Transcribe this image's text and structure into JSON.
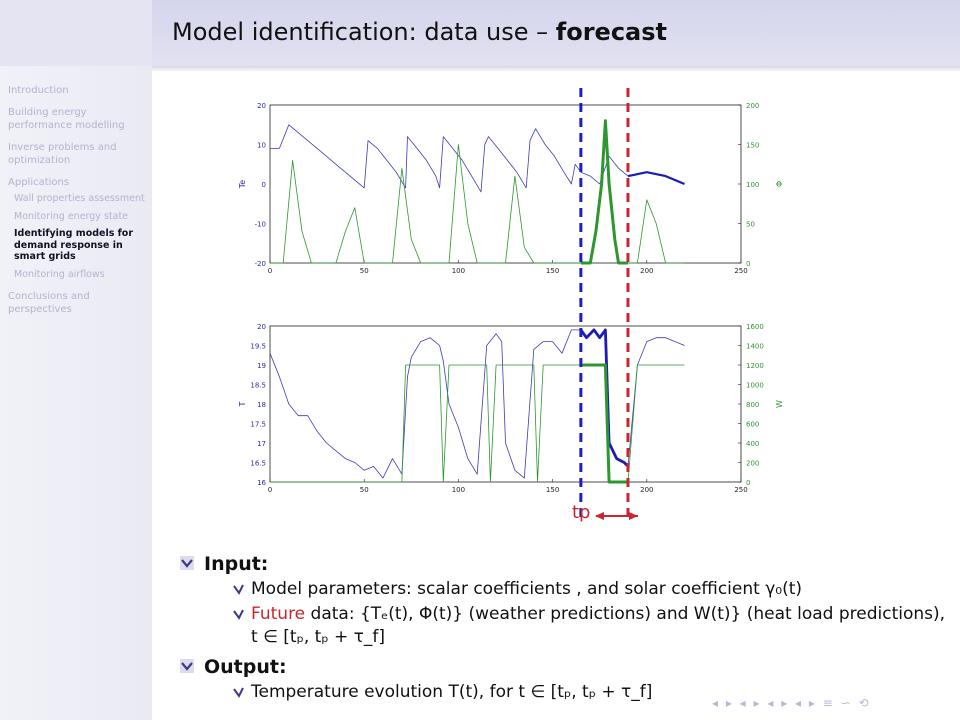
{
  "title": {
    "prefix": "Model identification: data use – ",
    "bold": "forecast"
  },
  "sidebar": {
    "sections": [
      {
        "label": "Introduction"
      },
      {
        "label": "Building energy performance modelling"
      },
      {
        "label": "Inverse problems and optimization"
      },
      {
        "label": "Applications",
        "items": [
          {
            "label": "Wall properties assessment",
            "active": false
          },
          {
            "label": "Monitoring energy state",
            "active": false
          },
          {
            "label": "Identifying models for demand response in smart grids",
            "active": true
          },
          {
            "label": "Monitoring airflows",
            "active": false
          }
        ]
      },
      {
        "label": "Conclusions and perspectives"
      }
    ]
  },
  "figure": {
    "tp_label": "tp",
    "top_plot": {
      "ylabel_left": "Te",
      "ylabel_right": "Φ",
      "yticks_left": [
        "20",
        "10",
        "0",
        "-10",
        "-20"
      ],
      "yticks_right": [
        "200",
        "150",
        "100",
        "50",
        "0"
      ],
      "xticks": [
        "0",
        "50",
        "100",
        "150",
        "200",
        "250"
      ]
    },
    "bottom_plot": {
      "ylabel_left": "T",
      "ylabel_right": "W",
      "yticks_left": [
        "20",
        "19.5",
        "19",
        "18.5",
        "18",
        "17.5",
        "17",
        "16.5",
        "16"
      ],
      "yticks_right": [
        "1600",
        "1400",
        "1200",
        "1000",
        "800",
        "600",
        "400",
        "200",
        "0"
      ],
      "xticks": [
        "0",
        "50",
        "100",
        "150",
        "200",
        "250"
      ]
    }
  },
  "chart_data": [
    {
      "type": "line",
      "xlim": [
        0,
        250
      ],
      "ylim": [
        -20,
        20
      ],
      "ylim_right": [
        0,
        200
      ],
      "vlines": [
        165,
        190
      ],
      "series": [
        {
          "axis": "left",
          "x": [
            0,
            5,
            10,
            15,
            20,
            25,
            30,
            35,
            40,
            45,
            50,
            52,
            57,
            62,
            67,
            72,
            73,
            78,
            83,
            88,
            90,
            92,
            97,
            102,
            107,
            112,
            114,
            116,
            121,
            126,
            131,
            136,
            138,
            141,
            146,
            151,
            156,
            160,
            162,
            165,
            170,
            175,
            180,
            185,
            190
          ],
          "y": [
            9,
            9,
            15,
            13,
            11,
            9,
            7,
            5,
            3,
            1,
            -1,
            11,
            9,
            6,
            3,
            -1,
            12,
            9,
            6,
            2,
            -1,
            12,
            9,
            6,
            2,
            -2,
            10,
            12,
            9,
            6,
            3,
            -1,
            11,
            14,
            10,
            7,
            3,
            0,
            5,
            3,
            2,
            0,
            7,
            4,
            2
          ]
        },
        {
          "axis": "left",
          "x": [
            190,
            200,
            210,
            220
          ],
          "y": [
            2,
            3,
            2,
            0
          ]
        },
        {
          "axis": "right",
          "x": [
            0,
            7,
            12,
            17,
            22,
            25,
            30,
            35,
            40,
            45,
            50,
            55,
            60,
            65,
            70,
            75,
            80,
            85,
            90,
            95,
            100,
            105,
            110,
            115,
            120,
            125,
            130,
            135,
            140,
            145,
            150,
            155,
            160,
            165,
            170,
            173,
            176,
            178,
            180,
            183,
            185,
            188,
            190,
            195,
            200,
            205,
            210,
            215,
            220
          ],
          "y": [
            0,
            0,
            130,
            40,
            0,
            0,
            0,
            0,
            40,
            70,
            0,
            0,
            0,
            0,
            120,
            30,
            0,
            0,
            0,
            0,
            150,
            50,
            0,
            0,
            0,
            0,
            110,
            20,
            0,
            0,
            0,
            0,
            0,
            0,
            0,
            40,
            100,
            180,
            100,
            30,
            0,
            0,
            0,
            0,
            80,
            50,
            0,
            0,
            0
          ]
        }
      ]
    },
    {
      "type": "line",
      "xlim": [
        0,
        250
      ],
      "ylim": [
        16,
        20
      ],
      "ylim_right": [
        0,
        1600
      ],
      "vlines": [
        165,
        190
      ],
      "series": [
        {
          "axis": "left",
          "x": [
            0,
            5,
            10,
            15,
            20,
            25,
            30,
            35,
            40,
            45,
            50,
            55,
            60,
            65,
            70,
            73,
            75,
            80,
            85,
            90,
            92,
            95,
            100,
            105,
            110,
            115,
            120,
            123,
            125,
            130,
            135,
            140,
            145,
            150,
            155,
            160,
            165,
            168,
            172,
            175,
            178,
            180,
            184,
            188,
            190,
            195,
            200,
            205,
            210,
            215,
            220
          ],
          "y": [
            19.3,
            18.7,
            18.0,
            17.7,
            17.7,
            17.3,
            17.0,
            16.8,
            16.6,
            16.5,
            16.3,
            16.4,
            16.1,
            16.6,
            16.2,
            18.7,
            19.2,
            19.6,
            19.7,
            19.5,
            19.1,
            18.0,
            17.4,
            16.6,
            16.2,
            19.5,
            19.8,
            19.6,
            17.0,
            16.3,
            16.1,
            19.4,
            19.6,
            19.6,
            19.3,
            19.9,
            19.9,
            19.7,
            19.9,
            19.7,
            19.9,
            17.0,
            16.6,
            16.5,
            16.4,
            19.0,
            19.6,
            19.7,
            19.7,
            19.6,
            19.5
          ]
        },
        {
          "axis": "right",
          "x": [
            0,
            70,
            72,
            75,
            90,
            92,
            95,
            115,
            117,
            120,
            140,
            142,
            145,
            165,
            168,
            172,
            175,
            178,
            180,
            184,
            188,
            190,
            195,
            200,
            205,
            210,
            215,
            220
          ],
          "y": [
            0,
            0,
            1200,
            1200,
            1200,
            0,
            1200,
            1200,
            0,
            1200,
            1200,
            0,
            1200,
            1200,
            1200,
            1200,
            1200,
            1200,
            0,
            0,
            0,
            0,
            1200,
            1200,
            1200,
            1200,
            1200,
            1200
          ]
        }
      ]
    }
  ],
  "content": {
    "input_label": "Input:",
    "model_params": "Model parameters: scalar coefficients , and solar coefficient γ₀(t)",
    "future_word": "Future",
    "future_rest": " data: {Tₑ(t), Φ(t)} (weather predictions) and W(t)} (heat load predictions), t ∈ [tₚ, tₚ + τ_f]",
    "output_label": "Output:",
    "temp_evolution": "Temperature evolution T(t), for t ∈ [tₚ, tₚ + τ_f]"
  },
  "navigation_symbols": "◂ ▸ ◂ ▸ ◂ ▸ ◂ ▸ ≡ ∽ ⟲"
}
